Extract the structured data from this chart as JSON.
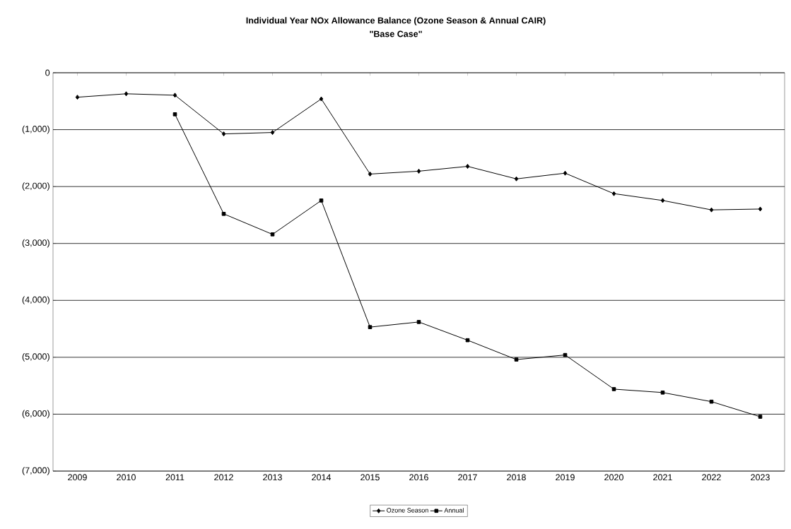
{
  "chart_data": {
    "type": "line",
    "title": "Individual Year NOx Allowance Balance (Ozone Season & Annual CAIR)",
    "subtitle": "\"Base Case\"",
    "categories": [
      "2009",
      "2010",
      "2011",
      "2012",
      "2013",
      "2014",
      "2015",
      "2016",
      "2017",
      "2018",
      "2019",
      "2020",
      "2021",
      "2022",
      "2023"
    ],
    "series": [
      {
        "name": "Ozone Season",
        "color": "#000000",
        "marker": "diamond",
        "values": [
          -430,
          -370,
          -395,
          -1075,
          -1050,
          -460,
          -1780,
          -1730,
          -1645,
          -1865,
          -1765,
          -2125,
          -2245,
          -2410,
          -2395
        ]
      },
      {
        "name": "Annual",
        "color": "#000000",
        "marker": "square",
        "values": [
          null,
          null,
          -730,
          -2480,
          -2840,
          -2245,
          -4470,
          -4380,
          -4700,
          -5040,
          -4960,
          -5560,
          -5620,
          -5780,
          -6045
        ]
      }
    ],
    "ylim": [
      -7000,
      0
    ],
    "yticks": [
      {
        "value": -7000,
        "label": "(7,000)"
      },
      {
        "value": -6000,
        "label": "(6,000)"
      },
      {
        "value": -5000,
        "label": "(5,000)"
      },
      {
        "value": -4000,
        "label": "(4,000)"
      },
      {
        "value": -3000,
        "label": "(3,000)"
      },
      {
        "value": -2000,
        "label": "(2,000)"
      },
      {
        "value": -1000,
        "label": "(1,000)"
      },
      0
    ],
    "grid": "y",
    "legend": "bottom",
    "line_style": "solid"
  }
}
